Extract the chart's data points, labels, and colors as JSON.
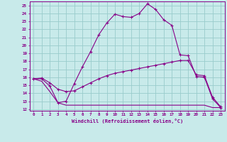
{
  "bg_color": "#c8eaea",
  "line_color": "#880088",
  "grid_color": "#99cccc",
  "xlabel": "Windchill (Refroidissement éolien,°C)",
  "ylim": [
    11.8,
    25.5
  ],
  "xlim": [
    -0.5,
    23.5
  ],
  "yticks": [
    12,
    13,
    14,
    15,
    16,
    17,
    18,
    19,
    20,
    21,
    22,
    23,
    24,
    25
  ],
  "xticks": [
    0,
    1,
    2,
    3,
    4,
    5,
    6,
    7,
    8,
    9,
    10,
    11,
    12,
    13,
    14,
    15,
    16,
    17,
    18,
    19,
    20,
    21,
    22,
    23
  ],
  "line1_x": [
    0,
    1,
    2,
    3,
    4,
    5,
    6,
    7,
    8,
    9,
    10,
    11,
    12,
    13,
    14,
    15,
    16,
    17,
    18,
    19,
    20,
    21,
    22,
    23
  ],
  "line1_y": [
    15.8,
    15.8,
    14.9,
    12.8,
    13.0,
    15.2,
    17.3,
    19.2,
    21.3,
    22.8,
    23.9,
    23.6,
    23.5,
    24.0,
    25.2,
    24.5,
    23.2,
    22.5,
    18.8,
    18.7,
    16.1,
    16.0,
    13.3,
    12.2
  ],
  "line2_x": [
    0,
    1,
    2,
    3,
    4,
    5,
    6,
    7,
    8,
    9,
    10,
    11,
    12,
    13,
    14,
    15,
    16,
    17,
    18,
    19,
    20,
    21,
    22,
    23
  ],
  "line2_y": [
    15.8,
    15.9,
    15.3,
    14.5,
    14.2,
    14.3,
    14.8,
    15.3,
    15.8,
    16.2,
    16.5,
    16.7,
    16.9,
    17.1,
    17.3,
    17.5,
    17.7,
    17.9,
    18.1,
    18.1,
    16.3,
    16.2,
    13.5,
    12.3
  ],
  "line3_x": [
    0,
    1,
    2,
    3,
    4,
    5,
    6,
    7,
    8,
    9,
    10,
    11,
    12,
    13,
    14,
    15,
    16,
    17,
    18,
    19,
    20,
    21,
    22,
    23
  ],
  "line3_y": [
    15.8,
    15.5,
    14.2,
    12.8,
    12.5,
    12.5,
    12.5,
    12.5,
    12.5,
    12.5,
    12.5,
    12.5,
    12.5,
    12.5,
    12.5,
    12.5,
    12.5,
    12.5,
    12.5,
    12.5,
    12.5,
    12.5,
    12.2,
    12.2
  ]
}
